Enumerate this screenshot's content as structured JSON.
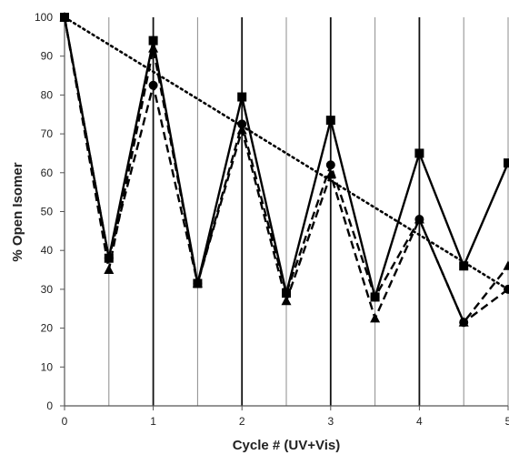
{
  "chart_data": {
    "type": "line",
    "title": "",
    "xlabel": "Cycle # (UV+Vis)",
    "ylabel": "% Open Isomer",
    "xlim": [
      0,
      5
    ],
    "ylim": [
      0,
      100
    ],
    "x_ticks": [
      "0",
      "1",
      "2",
      "3",
      "4",
      "5"
    ],
    "y_ticks": [
      "0",
      "10",
      "20",
      "30",
      "40",
      "50",
      "60",
      "70",
      "80",
      "90",
      "100"
    ],
    "grid": {
      "vertical_lines_at_x": [
        0.5,
        1,
        1.5,
        2,
        2.5,
        3,
        3.5,
        4,
        4.5,
        5
      ],
      "heavy_lines_at_x": [
        1,
        2,
        3,
        4
      ]
    },
    "series": [
      {
        "marker": "square",
        "line": "solid",
        "x": [
          0,
          0.5,
          1,
          1.5,
          2,
          2.5,
          3,
          3.5,
          4,
          4.5,
          5
        ],
        "y": [
          100,
          38,
          94,
          31.5,
          79.5,
          29,
          73.5,
          28,
          65,
          36,
          62.5
        ]
      },
      {
        "marker": "circle",
        "line": "dashed",
        "x": [
          0,
          0.5,
          1,
          1.5,
          2,
          2.5,
          3,
          3.5,
          4,
          4.5,
          5
        ],
        "y": [
          100,
          38,
          82.5,
          31.5,
          72.5,
          29,
          62,
          28,
          48,
          21.5,
          30
        ]
      },
      {
        "marker": "triangle",
        "line": "dashed",
        "x": [
          0,
          0.5,
          1,
          1.5,
          2,
          2.5,
          3,
          3.5,
          4,
          4.5,
          5
        ],
        "y": [
          100,
          35,
          92,
          31.5,
          71,
          27,
          59.5,
          22.5,
          48,
          21.5,
          36
        ]
      },
      {
        "marker": "none",
        "line": "dotted",
        "x": [
          0,
          5
        ],
        "y": [
          100,
          30
        ]
      }
    ],
    "colors": {
      "series": "#000000",
      "grid_light": "#8c8c8c",
      "grid_heavy": "#111111",
      "axis": "#555555",
      "text": "#222222"
    }
  }
}
